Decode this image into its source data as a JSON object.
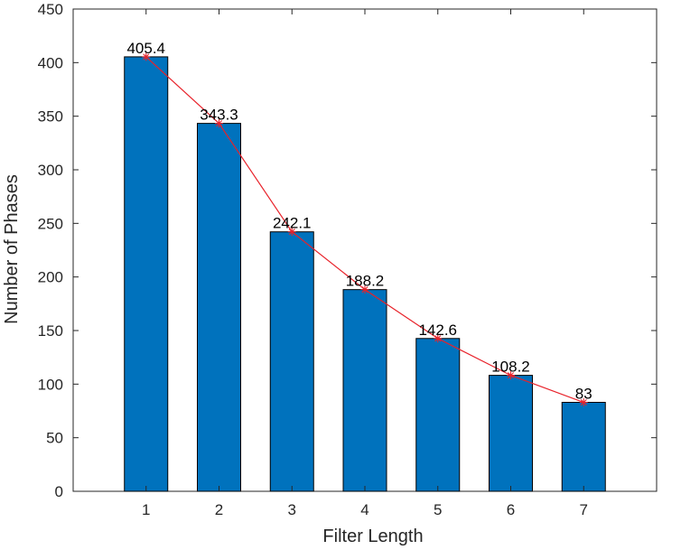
{
  "chart_data": {
    "type": "bar",
    "title": "",
    "xlabel": "Filter Length",
    "ylabel": "Number of Phases",
    "categories": [
      "1",
      "2",
      "3",
      "4",
      "5",
      "6",
      "7"
    ],
    "values": [
      405.4,
      343.3,
      242.1,
      188.2,
      142.6,
      108.2,
      83
    ],
    "data_labels": [
      "405.4",
      "343.3",
      "242.1",
      "188.2",
      "142.6",
      "108.2",
      "83"
    ],
    "overlay_line": {
      "type": "line",
      "marker": "asterisk",
      "values": [
        405.4,
        343.3,
        242.1,
        188.2,
        142.6,
        108.2,
        83
      ]
    },
    "xlim": [
      0,
      8
    ],
    "ylim": [
      0,
      450
    ],
    "yticks": [
      0,
      50,
      100,
      150,
      200,
      250,
      300,
      350,
      400,
      450
    ],
    "xticks": [
      "1",
      "2",
      "3",
      "4",
      "5",
      "6",
      "7"
    ],
    "grid": false,
    "legend": "none",
    "colors": {
      "bar_fill": "#0072BD",
      "bar_edge": "#000000",
      "line": "#E8222A",
      "axis": "#262626"
    }
  }
}
